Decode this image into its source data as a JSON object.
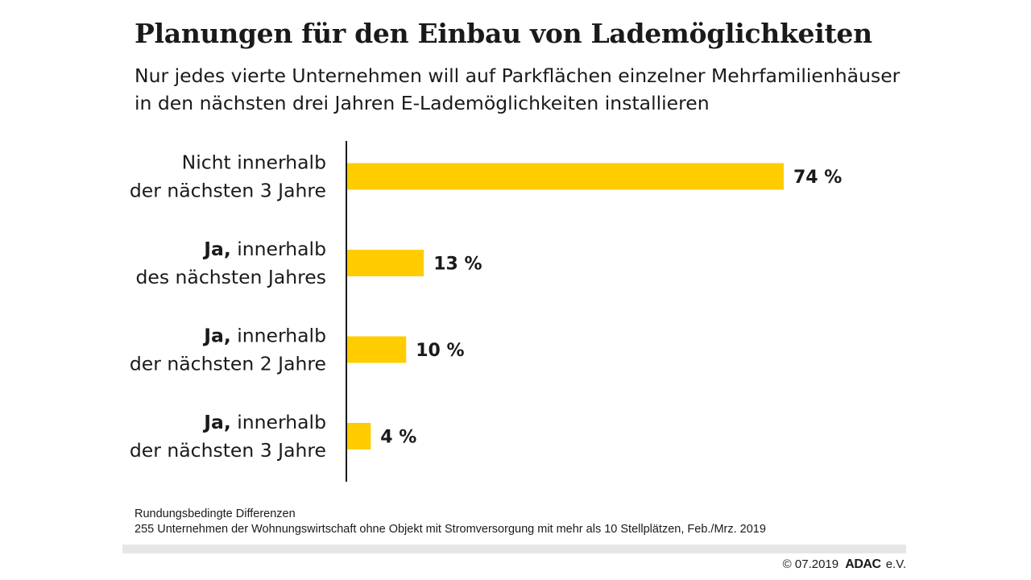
{
  "chart_data": {
    "type": "bar",
    "orientation": "horizontal",
    "title": "Planungen für den Einbau von Lademöglichkeiten",
    "subtitle": [
      "Nur jedes vierte Unternehmen will auf Parkflächen einzelner Mehrfamilienhäuser",
      "in den nächsten drei Jahren E-Lademöglichkeiten installieren"
    ],
    "categories": [
      {
        "lines": [
          [
            {
              "text": "Nicht innerhalb",
              "bold": false
            }
          ],
          [
            {
              "text": "der nächsten 3 Jahre",
              "bold": false
            }
          ]
        ]
      },
      {
        "lines": [
          [
            {
              "text": "Ja,",
              "bold": true
            },
            {
              "text": " innerhalb",
              "bold": false
            }
          ],
          [
            {
              "text": "des nächsten Jahres",
              "bold": false
            }
          ]
        ]
      },
      {
        "lines": [
          [
            {
              "text": "Ja,",
              "bold": true
            },
            {
              "text": " innerhalb",
              "bold": false
            }
          ],
          [
            {
              "text": "der nächsten 2 Jahre",
              "bold": false
            }
          ]
        ]
      },
      {
        "lines": [
          [
            {
              "text": "Ja,",
              "bold": true
            },
            {
              "text": " innerhalb",
              "bold": false
            }
          ],
          [
            {
              "text": "der nächsten 3 Jahre",
              "bold": false
            }
          ]
        ]
      }
    ],
    "values": [
      74,
      13,
      10,
      4
    ],
    "value_labels": [
      "74 %",
      "13 %",
      "10 %",
      "4 %"
    ],
    "unit": "%",
    "xlim": [
      0,
      100
    ],
    "grid": false,
    "bar_color": "#ffcc00",
    "axis_color": "#1a1a1a"
  },
  "footnote": {
    "line1": "Rundungsbedingte Differenzen",
    "line2": "255 Unternehmen der Wohnungswirtschaft ohne Objekt mit Stromversorgung mit mehr als 10 Stellplätzen, Feb./Mrz. 2019"
  },
  "copyright": {
    "date": "© 07.2019",
    "brand": "ADAC",
    "suffix": "e.V."
  },
  "colors": {
    "accent": "#ffcc00",
    "footer_bar": "#e6e6e6",
    "text": "#1a1a1a"
  }
}
